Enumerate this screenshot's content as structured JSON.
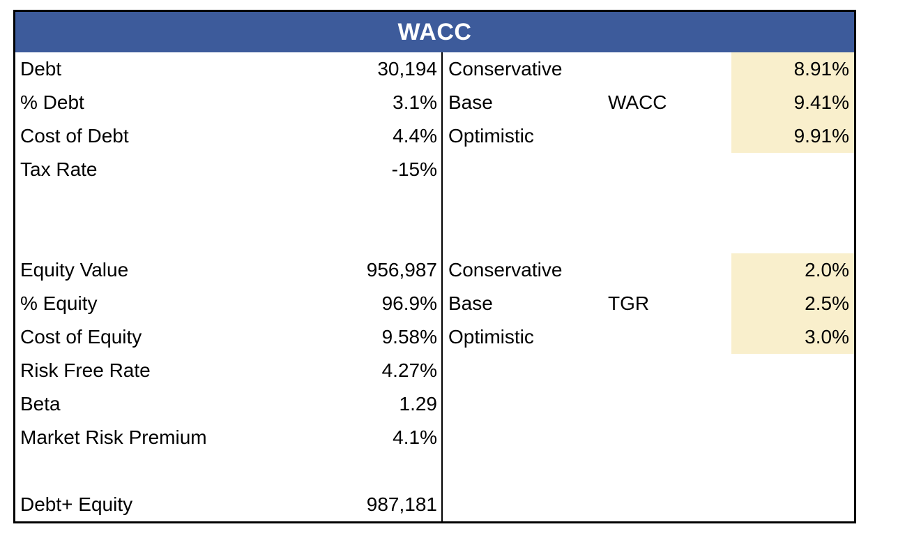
{
  "header": {
    "title": "WACC"
  },
  "colors": {
    "header_bg": "#3d5b9b",
    "header_text": "#ffffff",
    "highlight_bg": "#f9efcc",
    "border_color": "#000000",
    "text_color": "#000000"
  },
  "left_column": {
    "rows": [
      {
        "label": "Debt",
        "value": "30,194"
      },
      {
        "label": "% Debt",
        "value": "3.1%"
      },
      {
        "label": "Cost of Debt",
        "value": "4.4%"
      },
      {
        "label": "Tax Rate",
        "value": "-15%"
      },
      {
        "label": "",
        "value": ""
      },
      {
        "label": "",
        "value": ""
      },
      {
        "label": "Equity Value",
        "value": "956,987"
      },
      {
        "label": "% Equity",
        "value": "96.9%"
      },
      {
        "label": "Cost of Equity",
        "value": "9.58%"
      },
      {
        "label": "Risk Free Rate",
        "value": "4.27%"
      },
      {
        "label": "Beta",
        "value": "1.29"
      },
      {
        "label": "Market Risk Premium",
        "value": "4.1%"
      },
      {
        "label": "",
        "value": ""
      },
      {
        "label": "Debt+ Equity",
        "value": "987,181"
      }
    ]
  },
  "right_column": {
    "groups": [
      {
        "metric": "WACC",
        "scenarios": [
          {
            "label": "Conservative",
            "value": "8.91%"
          },
          {
            "label": "Base",
            "value": "9.41%"
          },
          {
            "label": "Optimistic",
            "value": "9.91%"
          }
        ]
      },
      {
        "metric": "TGR",
        "scenarios": [
          {
            "label": "Conservative",
            "value": "2.0%"
          },
          {
            "label": "Base",
            "value": "2.5%"
          },
          {
            "label": "Optimistic",
            "value": "3.0%"
          }
        ]
      }
    ]
  }
}
